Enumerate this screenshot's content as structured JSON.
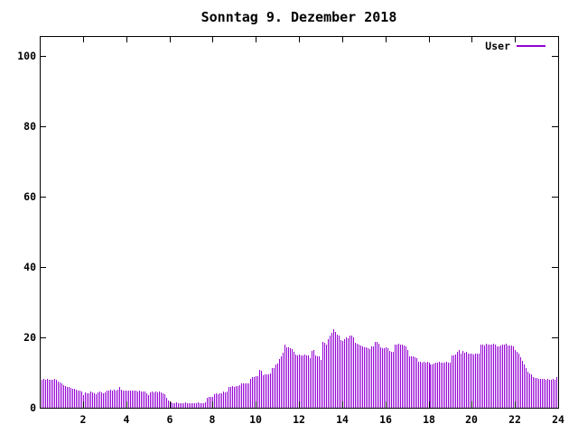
{
  "page": {
    "background": "#ffffff"
  },
  "chart_data": {
    "type": "bar",
    "style": "impulses",
    "title": "Sonntag 9. Dezember 2018",
    "legend": {
      "label": "User",
      "position": "top-right"
    },
    "series_color": "#9400d3",
    "axis_color": "#000000",
    "xlabel": "",
    "ylabel": "",
    "x_unit": "hour_of_day",
    "interval_minutes": 5,
    "xlim": [
      0,
      24
    ],
    "ylim": [
      0,
      105
    ],
    "x_ticks": [
      2,
      4,
      6,
      8,
      10,
      12,
      14,
      16,
      18,
      20,
      22,
      24
    ],
    "y_ticks": [
      0,
      20,
      40,
      60,
      80,
      100
    ],
    "grid": false,
    "values": [
      8,
      8.1,
      8,
      8.2,
      8,
      7.9,
      8,
      8.1,
      7.9,
      7.5,
      7.2,
      7,
      6.5,
      6.2,
      6,
      5.8,
      5.7,
      5.5,
      5.4,
      5.2,
      5,
      4.8,
      4.5,
      3.5,
      4.4,
      4.2,
      4,
      4.5,
      4.3,
      4.2,
      3.8,
      4.4,
      4.5,
      4.3,
      4.2,
      4.4,
      4.8,
      5,
      5.2,
      4.9,
      5.1,
      5,
      5.2,
      5.9,
      5.1,
      5,
      4.9,
      5,
      5,
      4.9,
      5,
      4.8,
      4.9,
      4.7,
      4.8,
      4.6,
      4.7,
      4.5,
      4,
      3.7,
      4.4,
      4.5,
      4.3,
      4.5,
      4.4,
      4.6,
      4.4,
      4.2,
      3.9,
      2.9,
      2,
      1.8,
      1.6,
      1.4,
      1.3,
      1.5,
      1.4,
      1.3,
      1.4,
      1.3,
      1.5,
      1.4,
      1.3,
      1.4,
      1.3,
      1.4,
      1.3,
      1.5,
      1.4,
      1.3,
      1.4,
      1.5,
      2.8,
      3,
      3.1,
      3.2,
      3.8,
      4,
      3.9,
      4.1,
      4,
      4.5,
      4.4,
      4.6,
      5.8,
      6,
      6.1,
      6,
      6.2,
      6.1,
      6.3,
      6.9,
      6.8,
      7,
      6.9,
      7,
      8.3,
      8.6,
      8.8,
      8.9,
      9,
      10.8,
      10.5,
      9.2,
      9.4,
      9.6,
      9.5,
      9.8,
      11.2,
      11.4,
      12.3,
      12.6,
      13.8,
      14.6,
      15.6,
      18,
      17.3,
      17.1,
      16.9,
      16.6,
      15.9,
      15.2,
      14.9,
      15.1,
      15,
      14.9,
      15.1,
      14.8,
      15,
      14.1,
      16.2,
      16.3,
      15,
      14.7,
      14.6,
      13.6,
      18.7,
      18.4,
      17.9,
      19.5,
      20.5,
      21.2,
      22.2,
      21.5,
      20.8,
      20.5,
      19.2,
      18.9,
      19.6,
      20,
      19.8,
      20.4,
      20.5,
      19.9,
      18.4,
      18.2,
      18,
      17.8,
      17.5,
      17.3,
      17.1,
      16.9,
      16.7,
      17.4,
      17.5,
      18.7,
      18.6,
      18.3,
      17.2,
      17,
      16.8,
      17.1,
      16.9,
      16.2,
      15.8,
      16,
      17.9,
      18,
      18.1,
      17.9,
      18,
      17.8,
      17.5,
      16.5,
      14.7,
      14.5,
      14.6,
      14.4,
      14.2,
      13.2,
      13,
      12.8,
      13.1,
      12.9,
      13,
      12.8,
      12.3,
      12.4,
      12.6,
      12.9,
      12.8,
      13,
      12.7,
      12.9,
      12.8,
      13,
      12.9,
      12.8,
      15,
      14.8,
      15.2,
      15.8,
      16.4,
      15.5,
      16.2,
      15.7,
      16,
      15.4,
      15.5,
      15.3,
      15.2,
      15.4,
      15.3,
      15.5,
      17.9,
      18,
      17.8,
      18.1,
      17.9,
      18,
      17.9,
      18.1,
      18,
      17.5,
      17.4,
      17.6,
      18,
      17.9,
      18.1,
      17.8,
      17.7,
      17.6,
      17.5,
      16.4,
      15.9,
      15.5,
      14.4,
      13.3,
      12.3,
      11.3,
      10.3,
      9.8,
      9.5,
      8.7,
      8.5,
      8.4,
      8.3,
      8.2,
      8.3,
      8.1,
      8,
      8.1,
      7.9,
      8,
      8.1,
      8,
      8.7,
      9
    ]
  }
}
